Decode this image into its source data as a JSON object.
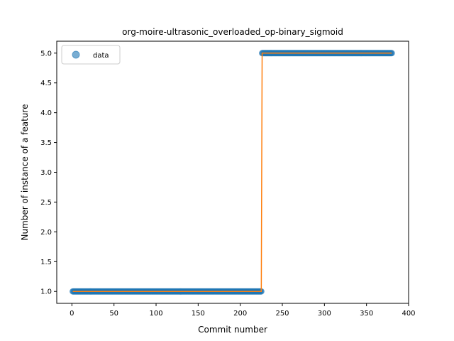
{
  "chart_data": {
    "type": "scatter",
    "title": "org-moire-ultrasonic_overloaded_op-binary_sigmoid",
    "xlabel": "Commit number",
    "ylabel": "Number of instance of a feature",
    "xlim": [
      -18,
      400
    ],
    "ylim": [
      0.8,
      5.2
    ],
    "xticks": [
      0,
      50,
      100,
      150,
      200,
      250,
      300,
      350,
      400
    ],
    "yticks": [
      1.0,
      1.5,
      2.0,
      2.5,
      3.0,
      3.5,
      4.0,
      4.5,
      5.0
    ],
    "xtick_labels": [
      "0",
      "50",
      "100",
      "150",
      "200",
      "250",
      "300",
      "350",
      "400"
    ],
    "ytick_labels": [
      "1.0",
      "1.5",
      "2.0",
      "2.5",
      "3.0",
      "3.5",
      "4.0",
      "4.5",
      "5.0"
    ],
    "grid": false,
    "legend": {
      "position": "top-left",
      "entries": [
        "data"
      ]
    },
    "series": [
      {
        "name": "data",
        "kind": "points",
        "color": "#1f77b4",
        "segments": [
          {
            "x_start": 1,
            "x_end": 225,
            "y": 1.0
          },
          {
            "x_start": 226,
            "x_end": 380,
            "y": 5.0
          }
        ]
      },
      {
        "kind": "line",
        "color": "#ff7f0e",
        "x": [
          1,
          225,
          226,
          380
        ],
        "y": [
          1.0,
          1.0,
          5.0,
          5.0
        ]
      }
    ]
  }
}
